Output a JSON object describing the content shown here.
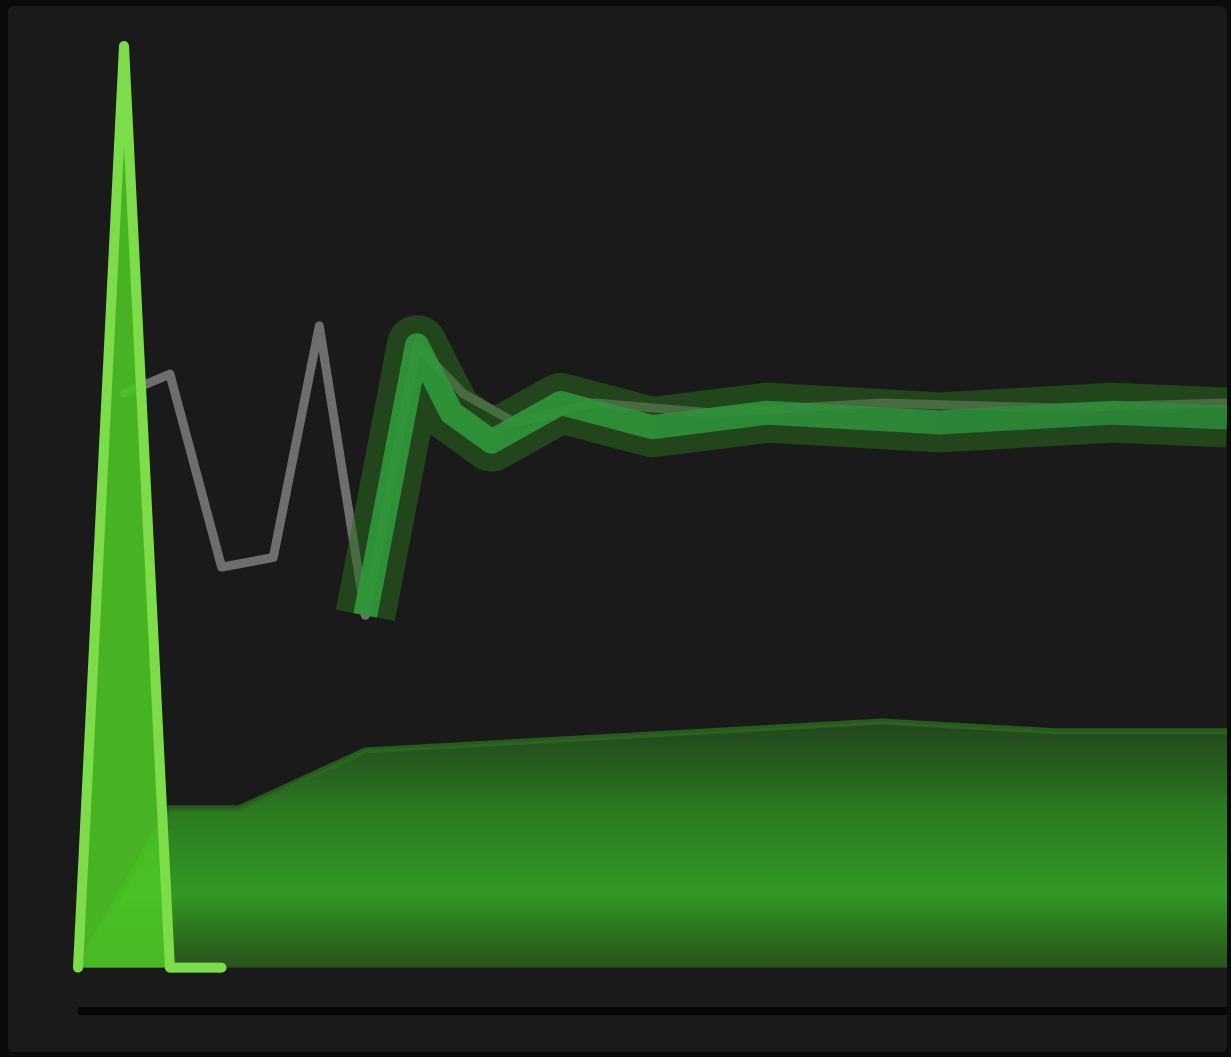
{
  "colors": {
    "background": "#1a1a1a",
    "page": "#0b0b0b",
    "spike_line": "#7ddc4a",
    "spike_fill": "#4cc425",
    "secondary_line": "#6e6e6e",
    "band_fill": "#2f8f20",
    "band_outer": "#2a6a1e",
    "mid_line": "#2f9a3a"
  },
  "chart_data": {
    "type": "line",
    "title": "",
    "xlabel": "",
    "ylabel": "",
    "xlim": [
      0,
      100
    ],
    "ylim": [
      0,
      100
    ],
    "grid": false,
    "legend": "none",
    "series": [
      {
        "role": "primary-spike",
        "x": [
          0,
          4.0,
          8.0,
          12.5
        ],
        "values": [
          4.5,
          100,
          4.5,
          4.5
        ]
      },
      {
        "role": "gray-oscillation",
        "x": [
          4.0,
          8.0,
          12.5,
          17.0,
          21.0,
          25.0,
          29.5,
          33.5,
          38.0,
          45.0,
          55.0,
          70.0,
          85.0,
          100
        ],
        "values": [
          64,
          66,
          46,
          47,
          71,
          41,
          69,
          64,
          61,
          63,
          62,
          63,
          62.5,
          63
        ]
      },
      {
        "role": "green-settled-line",
        "x": [
          25.0,
          29.5,
          32.5,
          36.0,
          42.0,
          50.0,
          60.0,
          75.0,
          90.0,
          100
        ],
        "values": [
          41,
          69,
          62,
          59,
          63,
          60.5,
          62,
          61,
          62,
          61.5
        ]
      },
      {
        "role": "lower-band-top",
        "x": [
          0,
          8.0,
          14.0,
          25.0,
          40.0,
          55.0,
          70.0,
          85.0,
          100
        ],
        "values": [
          4.5,
          21,
          21,
          27,
          28,
          29,
          30,
          29,
          29
        ]
      },
      {
        "role": "lower-band-bottom",
        "x": [
          0,
          100
        ],
        "values": [
          4.5,
          4.5
        ]
      }
    ]
  }
}
